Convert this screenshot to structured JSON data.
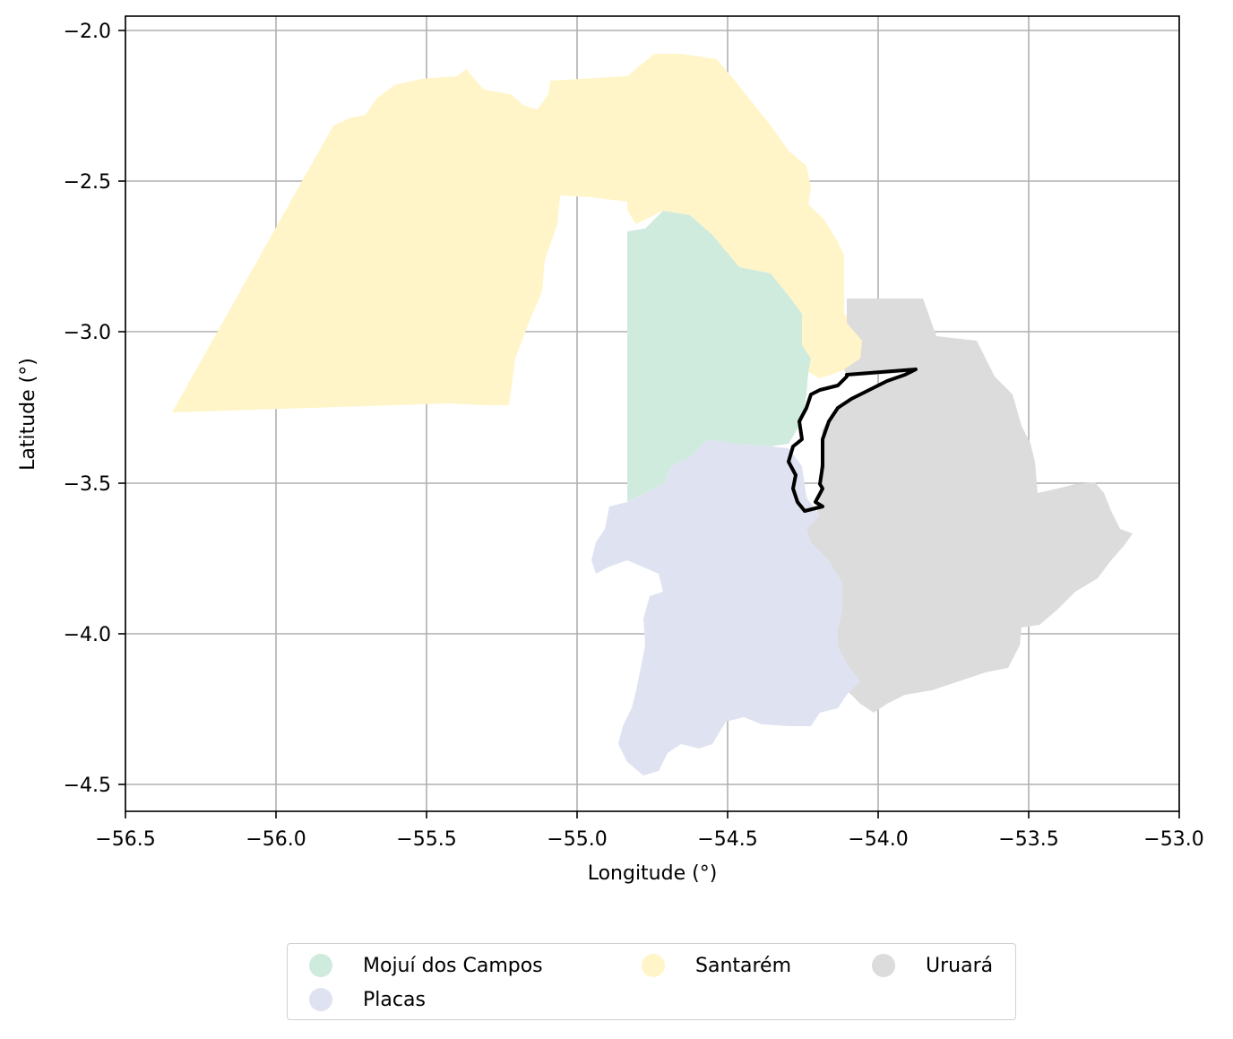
{
  "map": {
    "xlabel": "Longitude (°)",
    "ylabel": "Latitude (°)",
    "xlim": [
      -56.5,
      -53.0
    ],
    "ylim": [
      -4.58,
      -1.95
    ],
    "x_ticks": [
      "−56.5",
      "−56.0",
      "−55.5",
      "−55.0",
      "−54.5",
      "−54.0",
      "−53.5",
      "−53.0"
    ],
    "y_ticks": [
      "−2.0",
      "−2.5",
      "−3.0",
      "−3.5",
      "−4.0",
      "−4.5"
    ],
    "grid": true,
    "regions": [
      {
        "name": "Mojuí dos Campos",
        "color": "#cfebde"
      },
      {
        "name": "Placas",
        "color": "#dfe3f1"
      },
      {
        "name": "Santarém",
        "color": "#fff5c8"
      },
      {
        "name": "Uruará",
        "color": "#dcdcdc"
      }
    ],
    "outline_color": "#000000"
  },
  "legend": {
    "items": [
      {
        "label": "Mojuí dos Campos",
        "color": "#cfebde"
      },
      {
        "label": "Santarém",
        "color": "#fff5c8"
      },
      {
        "label": "Uruará",
        "color": "#dcdcdc"
      },
      {
        "label": "Placas",
        "color": "#dfe3f1"
      }
    ]
  }
}
